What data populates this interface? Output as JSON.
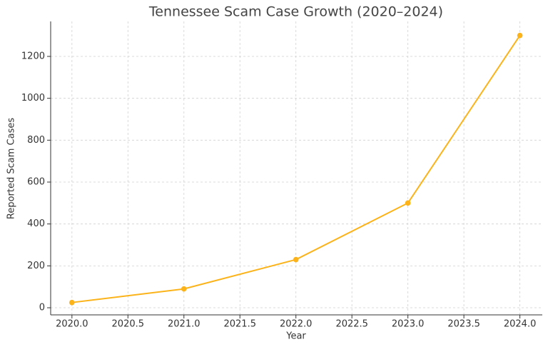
{
  "chart_data": {
    "type": "line",
    "title": "Tennessee Scam Case Growth (2020–2024)",
    "x_label": "Year",
    "y_label": "Reported Scam Cases",
    "x": [
      2020,
      2021,
      2022,
      2023,
      2024
    ],
    "series": [
      {
        "name": "Reported Scam Cases",
        "color": "#fbb319",
        "values": [
          25,
          90,
          230,
          500,
          1300
        ]
      }
    ],
    "xlim": [
      2019.81,
      2024.2
    ],
    "xticks": [
      {
        "value": 2020,
        "label": "2020.0"
      },
      {
        "value": 2020.5,
        "label": "2020.5"
      },
      {
        "value": 2021,
        "label": "2021.0"
      },
      {
        "value": 2021.5,
        "label": "2021.5"
      },
      {
        "value": 2022,
        "label": "2022.0"
      },
      {
        "value": 2022.5,
        "label": "2022.5"
      },
      {
        "value": 2023,
        "label": "2023.0"
      },
      {
        "value": 2023.5,
        "label": "2023.5"
      },
      {
        "value": 2024,
        "label": "2024.0"
      }
    ],
    "ylim": [
      -34,
      1367
    ],
    "yticks": [
      0,
      200,
      400,
      600,
      800,
      1000,
      1200
    ],
    "grid": true
  }
}
